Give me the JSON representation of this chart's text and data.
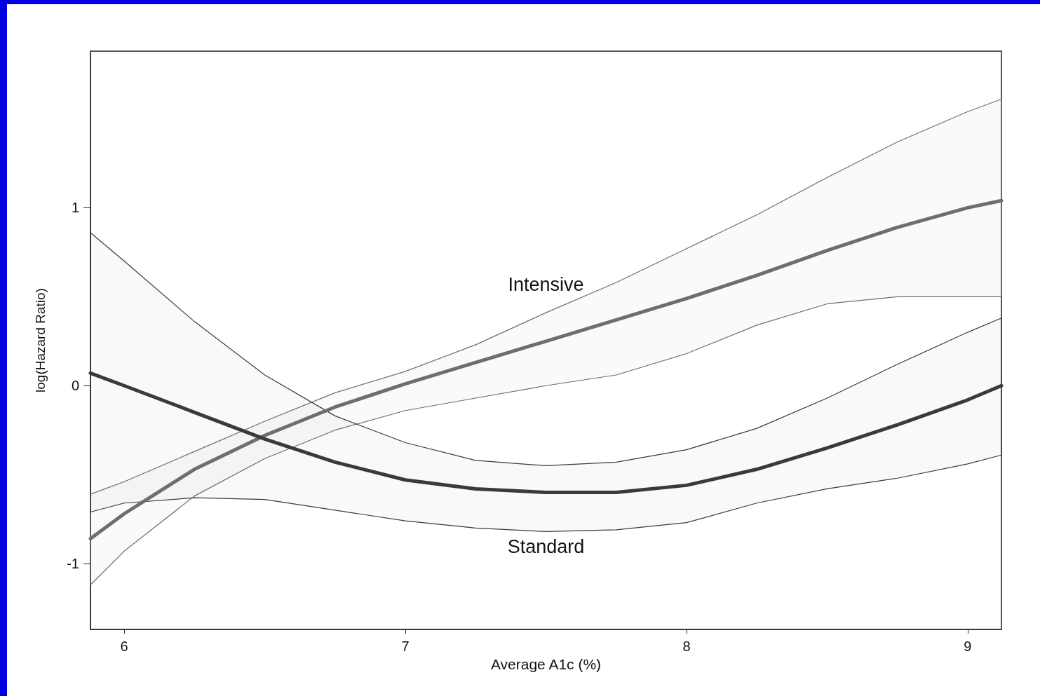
{
  "chart_data": {
    "type": "line",
    "xlabel": "Average A1c (%)",
    "ylabel": "log(Hazard Ratio)",
    "x": [
      5.88,
      6,
      6.25,
      6.5,
      6.75,
      7,
      7.25,
      7.5,
      7.75,
      8,
      8.25,
      8.5,
      8.75,
      9,
      9.12
    ],
    "series": [
      {
        "color": "#6e6e6e",
        "values": [
          -0.86,
          -0.72,
          -0.47,
          -0.28,
          -0.12,
          0.01,
          0.13,
          0.25,
          0.37,
          0.49,
          0.62,
          0.76,
          0.89,
          1.0,
          1.04
        ],
        "upper": [
          -0.61,
          -0.54,
          -0.37,
          -0.2,
          -0.04,
          0.08,
          0.23,
          0.41,
          0.58,
          0.77,
          0.96,
          1.17,
          1.37,
          1.54,
          1.61
        ],
        "lower": [
          -1.12,
          -0.93,
          -0.62,
          -0.41,
          -0.25,
          -0.14,
          -0.07,
          0.0,
          0.06,
          0.18,
          0.34,
          0.46,
          0.5,
          0.5,
          0.5
        ]
      },
      {
        "color": "#3a3a3a",
        "values": [
          0.07,
          0.0,
          -0.15,
          -0.3,
          -0.43,
          -0.53,
          -0.58,
          -0.6,
          -0.6,
          -0.56,
          -0.47,
          -0.35,
          -0.22,
          -0.08,
          0.0
        ],
        "upper": [
          0.86,
          0.7,
          0.36,
          0.06,
          -0.17,
          -0.32,
          -0.42,
          -0.45,
          -0.43,
          -0.36,
          -0.24,
          -0.07,
          0.12,
          0.3,
          0.38
        ],
        "lower": [
          -0.71,
          -0.66,
          -0.63,
          -0.64,
          -0.7,
          -0.76,
          -0.8,
          -0.82,
          -0.81,
          -0.77,
          -0.66,
          -0.58,
          -0.52,
          -0.44,
          -0.39
        ]
      }
    ],
    "annotations": [
      "Intensive",
      "Standard"
    ],
    "xlim": [
      5.88,
      9.12
    ],
    "ylim": [
      -1.37,
      1.88
    ],
    "xticks": [
      6,
      7,
      8,
      9
    ],
    "yticks": [
      -1,
      0,
      1
    ],
    "grid": false,
    "marker": "none",
    "line_style": "solid"
  }
}
